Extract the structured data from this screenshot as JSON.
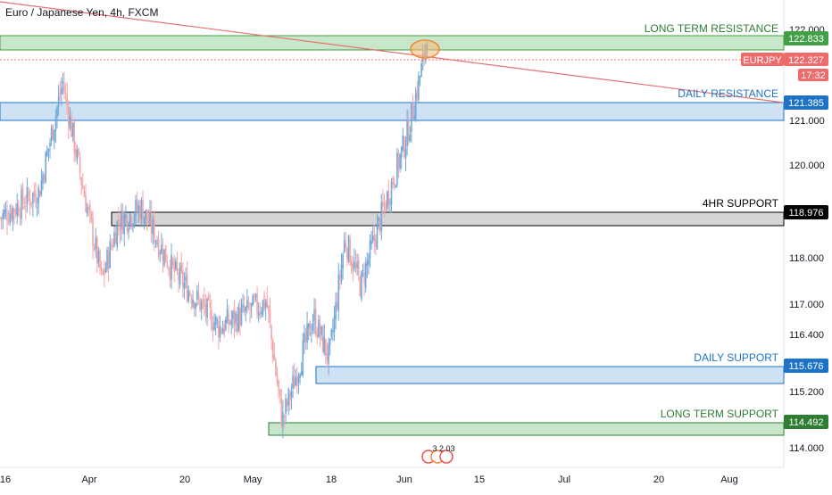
{
  "title": "Euro / Japanese Yen, 4h, FXCM",
  "symbol": "EURJPY",
  "current_price": "122.327",
  "countdown": "17:32",
  "colors": {
    "up": "#6fa8dc",
    "down": "#f4a6a6",
    "resistance_fill": "#c8e6c9",
    "resistance_line": "#43a047",
    "daily_fill": "#cfe2f3",
    "daily_line": "#1e73c8",
    "support4h_fill": "#d5d5d5",
    "support4h_line": "#000000",
    "trendline": "#e57373",
    "price_tag": "#ef6b6b",
    "ellipse": "#f5b97a"
  },
  "chart_data": {
    "type": "candlestick",
    "title": "Euro / Japanese Yen, 4h, FXCM",
    "x_tick_labels": [
      "16",
      "Apr",
      "20",
      "May",
      "18",
      "Jun",
      "15",
      "Jul",
      "20",
      "Aug"
    ],
    "y_tick_labels": [
      "114.000",
      "115.200",
      "116.400",
      "117.000",
      "118.000",
      "120.000",
      "121.000",
      "122.000"
    ],
    "ylim": [
      113.8,
      122.6
    ],
    "price_series": {
      "anchors": [
        [
          0,
          118.4
        ],
        [
          0.05,
          118.9
        ],
        [
          0.08,
          121.0
        ],
        [
          0.1,
          119.4
        ],
        [
          0.13,
          117.2
        ],
        [
          0.15,
          118.3
        ],
        [
          0.18,
          118.6
        ],
        [
          0.22,
          117.4
        ],
        [
          0.28,
          116.3
        ],
        [
          0.34,
          116.8
        ],
        [
          0.36,
          114.5
        ],
        [
          0.4,
          116.5
        ],
        [
          0.42,
          115.7
        ],
        [
          0.44,
          118.0
        ],
        [
          0.46,
          117.1
        ],
        [
          0.49,
          118.6
        ],
        [
          0.52,
          120.0
        ],
        [
          0.54,
          121.4
        ],
        [
          0.55,
          122.5
        ]
      ]
    },
    "levels": [
      {
        "label": "LONG TERM RESISTANCE",
        "price": "122.833",
        "type": "zone"
      },
      {
        "label": "DAILY RESISTANCE",
        "price": "121.385",
        "type": "zone"
      },
      {
        "label": "4HR SUPPORT",
        "price": "118.976",
        "type": "zone"
      },
      {
        "label": "DAILY SUPPORT",
        "price": "115.676",
        "type": "zone"
      },
      {
        "label": "LONG TERM SUPPORT",
        "price": "114.492",
        "type": "zone"
      }
    ],
    "events_marker": "3 2 03"
  }
}
